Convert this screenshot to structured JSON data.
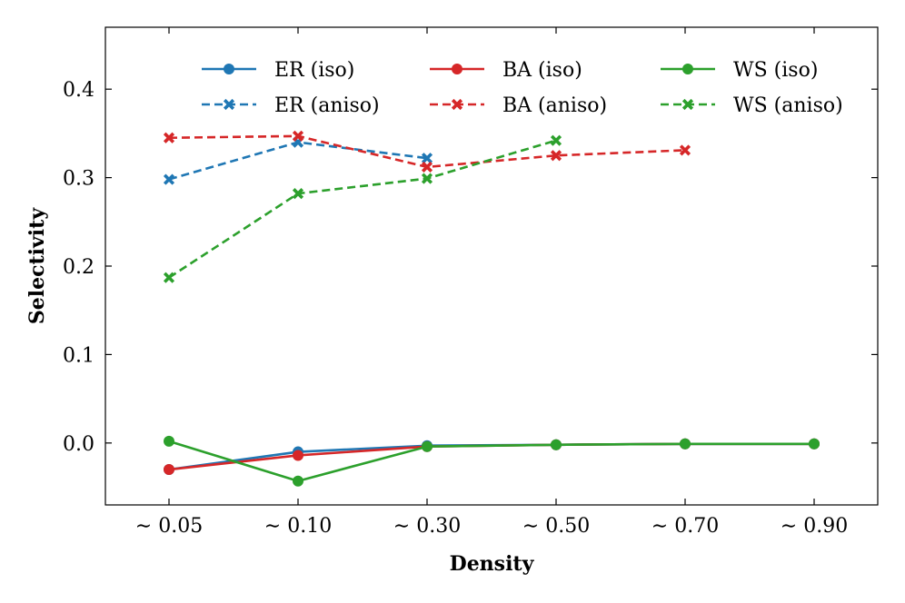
{
  "chart_data": {
    "type": "line",
    "title": "",
    "xlabel": "Density",
    "ylabel": "Selectivity",
    "categories": [
      "∼ 0.05",
      "∼ 0.10",
      "∼ 0.30",
      "∼ 0.50",
      "∼ 0.70",
      "∼ 0.90"
    ],
    "ylim": [
      -0.07,
      0.47
    ],
    "yticks": [
      "0.0",
      "0.1",
      "0.2",
      "0.3",
      "0.4"
    ],
    "ytick_values": [
      0.0,
      0.1,
      0.2,
      0.3,
      0.4
    ],
    "grid": false,
    "legend_position": "top",
    "colors": {
      "ER": "#1f77b4",
      "BA": "#d62728",
      "WS": "#2ca02c"
    },
    "series": [
      {
        "name": "ER (iso)",
        "family": "ER",
        "style": "solid",
        "marker": "circle",
        "values": [
          -0.03,
          -0.01,
          -0.003,
          -0.002,
          -0.001,
          -0.001
        ]
      },
      {
        "name": "BA (iso)",
        "family": "BA",
        "style": "solid",
        "marker": "circle",
        "values": [
          -0.03,
          -0.014,
          -0.004,
          -0.002,
          -0.001,
          -0.001
        ]
      },
      {
        "name": "WS (iso)",
        "family": "WS",
        "style": "solid",
        "marker": "circle",
        "values": [
          0.002,
          -0.043,
          -0.004,
          -0.002,
          -0.001,
          -0.001
        ]
      },
      {
        "name": "ER (aniso)",
        "family": "ER",
        "style": "dashed",
        "marker": "x",
        "values": [
          0.298,
          0.34,
          0.322,
          null,
          null,
          null
        ]
      },
      {
        "name": "BA (aniso)",
        "family": "BA",
        "style": "dashed",
        "marker": "x",
        "values": [
          0.345,
          0.347,
          0.312,
          0.325,
          0.331,
          null
        ]
      },
      {
        "name": "WS (aniso)",
        "family": "WS",
        "style": "dashed",
        "marker": "x",
        "values": [
          0.187,
          0.282,
          0.299,
          0.342,
          null,
          null
        ]
      }
    ],
    "legend": [
      [
        "ER (iso)",
        "BA (iso)",
        "WS (iso)"
      ],
      [
        "ER (aniso)",
        "BA (aniso)",
        "WS (aniso)"
      ]
    ]
  }
}
